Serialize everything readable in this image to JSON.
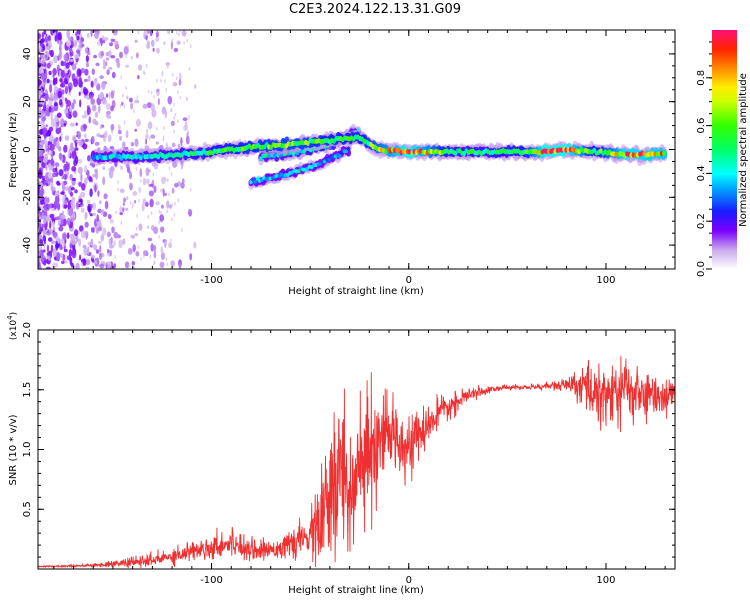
{
  "title": "C2E3.2024.122.13.31.G09",
  "chart_data": [
    {
      "type": "heatmap",
      "xlabel": "Height of straight line (km)",
      "ylabel": "Frequency (Hz)",
      "xlim": [
        -188,
        135
      ],
      "ylim": [
        -50,
        50
      ],
      "xticks": [
        -100,
        0,
        100
      ],
      "yticks": [
        -40,
        -20,
        0,
        20,
        40
      ],
      "colorbar": {
        "label": "Normalized spectral amplitude",
        "range": [
          0,
          1
        ],
        "ticks": [
          0.0,
          0.2,
          0.4,
          0.6,
          0.8
        ],
        "tick_labels": [
          "0.0",
          "0.2",
          "0.4",
          "0.6",
          "0.8"
        ]
      },
      "features": {
        "main_tone": [
          {
            "x": -160,
            "y": -3,
            "amp": 0.35
          },
          {
            "x": -130,
            "y": -3,
            "amp": 0.45
          },
          {
            "x": -100,
            "y": -1,
            "amp": 0.5
          },
          {
            "x": -80,
            "y": 1,
            "amp": 0.55
          },
          {
            "x": -60,
            "y": 2,
            "amp": 0.6
          },
          {
            "x": -40,
            "y": 4,
            "amp": 0.55
          },
          {
            "x": -25,
            "y": 5,
            "amp": 0.5
          },
          {
            "x": -15,
            "y": 0,
            "amp": 0.65
          },
          {
            "x": 0,
            "y": -1,
            "amp": 0.9
          },
          {
            "x": 20,
            "y": -1,
            "amp": 0.5
          },
          {
            "x": 40,
            "y": -1,
            "amp": 0.45
          },
          {
            "x": 60,
            "y": -1,
            "amp": 0.55
          },
          {
            "x": 70,
            "y": -1,
            "amp": 0.95
          },
          {
            "x": 80,
            "y": 0,
            "amp": 0.9
          },
          {
            "x": 95,
            "y": -1,
            "amp": 0.5
          },
          {
            "x": 110,
            "y": -2,
            "amp": 0.85
          },
          {
            "x": 130,
            "y": -2,
            "amp": 0.8
          }
        ],
        "secondary_branch": [
          {
            "x": -75,
            "y": -3,
            "amp": 0.4
          },
          {
            "x": -55,
            "y": -1,
            "amp": 0.45
          },
          {
            "x": -40,
            "y": 2,
            "amp": 0.5
          },
          {
            "x": -25,
            "y": 8,
            "amp": 0.35
          }
        ],
        "tertiary_branch": [
          {
            "x": -80,
            "y": -14,
            "amp": 0.35
          },
          {
            "x": -60,
            "y": -10,
            "amp": 0.4
          },
          {
            "x": -45,
            "y": -6,
            "amp": 0.35
          },
          {
            "x": -30,
            "y": 0,
            "amp": 0.3
          }
        ]
      }
    },
    {
      "type": "line",
      "xlabel": "Height of straight line (km)",
      "ylabel": "SNR (10 * v/v)",
      "y_multiplier": "(x10^4)",
      "xlim": [
        -188,
        135
      ],
      "ylim": [
        0,
        2.0
      ],
      "xticks": [
        -100,
        0,
        100
      ],
      "yticks": [
        0.5,
        1.0,
        1.5,
        2.0
      ],
      "ytick_labels": [
        "0.5",
        "1.0",
        "1.5",
        "2.0"
      ],
      "series": [
        {
          "color": "#ef3030",
          "x": [
            -188,
            -160,
            -130,
            -110,
            -90,
            -75,
            -60,
            -50,
            -40,
            -35,
            -30,
            -25,
            -20,
            -15,
            -10,
            -5,
            0,
            5,
            10,
            15,
            20,
            25,
            30,
            40,
            50,
            60,
            70,
            80,
            90,
            95,
            100,
            110,
            120,
            130,
            135
          ],
          "y": [
            0.02,
            0.03,
            0.07,
            0.15,
            0.22,
            0.15,
            0.2,
            0.28,
            0.5,
            0.85,
            0.7,
            0.8,
            0.9,
            1.0,
            1.15,
            1.1,
            1.05,
            1.1,
            1.2,
            1.3,
            1.35,
            1.4,
            1.45,
            1.5,
            1.52,
            1.52,
            1.53,
            1.54,
            1.52,
            1.5,
            1.45,
            1.5,
            1.45,
            1.45,
            1.48
          ],
          "noise": [
            0.003,
            0.006,
            0.03,
            0.04,
            0.06,
            0.04,
            0.05,
            0.08,
            0.35,
            0.35,
            0.3,
            0.3,
            0.35,
            0.15,
            0.15,
            0.15,
            0.12,
            0.1,
            0.08,
            0.06,
            0.05,
            0.04,
            0.03,
            0.015,
            0.01,
            0.01,
            0.015,
            0.03,
            0.08,
            0.15,
            0.15,
            0.15,
            0.1,
            0.08,
            0.06
          ]
        }
      ]
    }
  ]
}
